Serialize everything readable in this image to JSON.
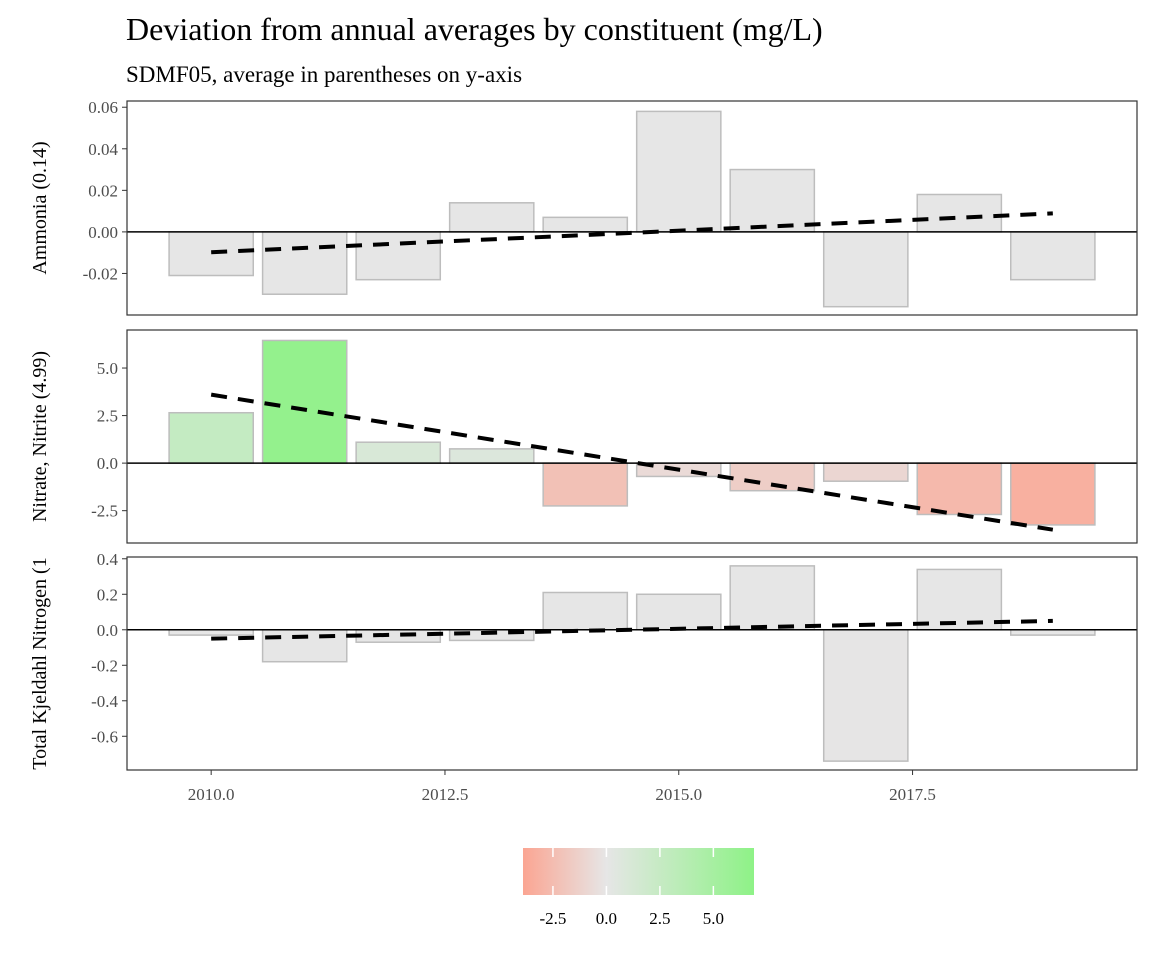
{
  "chart_data": {
    "type": "bar",
    "title": "Deviation from annual averages by constituent (mg/L)",
    "subtitle": "SDMF05, average in parentheses on y-axis",
    "x": [
      2010,
      2011,
      2012,
      2013,
      2014,
      2015,
      2016,
      2017,
      2018,
      2019
    ],
    "xlim": [
      2009.1,
      2019.9
    ],
    "xticks": [
      2010.0,
      2012.5,
      2015.0,
      2017.5
    ],
    "xtick_labels": [
      "2010.0",
      "2012.5",
      "2015.0",
      "2017.5"
    ],
    "grid": false,
    "panels": [
      {
        "ylabel": "Ammonia (0.14)",
        "values": [
          -0.021,
          -0.03,
          -0.023,
          0.014,
          0.007,
          0.058,
          0.03,
          -0.036,
          0.018,
          -0.023
        ],
        "trend": [
          -0.0098,
          0.0089
        ],
        "ylim": [
          -0.04,
          0.063
        ],
        "yticks": [
          0.06,
          0.04,
          0.02,
          0.0,
          -0.02
        ],
        "ytick_labels": [
          "0.06",
          "0.04",
          "0.02",
          "0.00",
          "-0.02"
        ]
      },
      {
        "ylabel": "Nitrate, Nitrite (4.99)",
        "values": [
          2.65,
          6.45,
          1.1,
          0.75,
          -2.25,
          -0.7,
          -1.45,
          -0.95,
          -2.7,
          -3.25
        ],
        "trend": [
          3.6,
          -3.5
        ],
        "ylim": [
          -4.2,
          7.0
        ],
        "yticks": [
          5.0,
          2.5,
          0.0,
          -2.5
        ],
        "ytick_labels": [
          "5.0",
          "2.5",
          "0.0",
          "-2.5"
        ]
      },
      {
        "ylabel": "Total Kjeldahl Nitrogen (1",
        "values": [
          -0.03,
          -0.18,
          -0.07,
          -0.06,
          0.21,
          0.2,
          0.36,
          -0.74,
          0.34,
          -0.03
        ],
        "trend": [
          -0.05,
          0.05
        ],
        "ylim": [
          -0.79,
          0.41
        ],
        "yticks": [
          0.4,
          0.2,
          0.0,
          -0.2,
          -0.4,
          -0.6
        ],
        "ytick_labels": [
          "0.4",
          "0.2",
          "0.0",
          "-0.2",
          "-0.4",
          "-0.6"
        ]
      }
    ],
    "legend": {
      "placement": "bottom",
      "range": [
        -3.9,
        6.9
      ],
      "ticks": [
        -2.5,
        0.0,
        2.5,
        5.0
      ],
      "tick_labels": [
        "-2.5",
        "0.0",
        "2.5",
        "5.0"
      ],
      "colors": {
        "low": "#fba592",
        "mid": "#e6e6e6",
        "high": "#8ef287"
      }
    },
    "colors": {
      "bar_outline": "#bdbdbd",
      "trend": "#000000"
    }
  }
}
